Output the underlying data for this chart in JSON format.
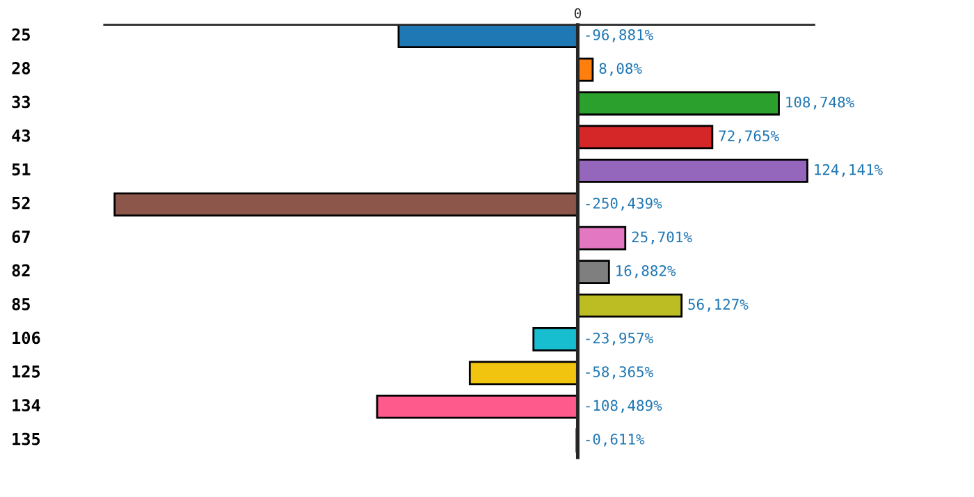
{
  "chart_data": {
    "type": "bar",
    "orientation": "horizontal",
    "categories": [
      "25",
      "28",
      "33",
      "43",
      "51",
      "52",
      "67",
      "82",
      "85",
      "106",
      "125",
      "134",
      "135"
    ],
    "values": [
      -96.881,
      8.08,
      108.748,
      72.765,
      124.141,
      -250.439,
      25.701,
      16.882,
      56.127,
      -23.957,
      -58.365,
      -108.489,
      -0.611
    ],
    "colors": [
      "#1f77b4",
      "#ff7f0e",
      "#2ca02c",
      "#d62728",
      "#9467bd",
      "#8c564b",
      "#e377c2",
      "#7f7f7f",
      "#bcbd22",
      "#17becf",
      "#f1c40f",
      "#ff5a8c",
      "#1f77b4"
    ],
    "value_labels": [
      "-96,881%",
      "8,08%",
      "108,748%",
      "72,765%",
      "124,141%",
      "-250,439%",
      "25,701%",
      "16,882%",
      "56,127%",
      "-23,957%",
      "-58,365%",
      "-108,489%",
      "-0,611%"
    ],
    "annotations": [
      "0"
    ]
  }
}
